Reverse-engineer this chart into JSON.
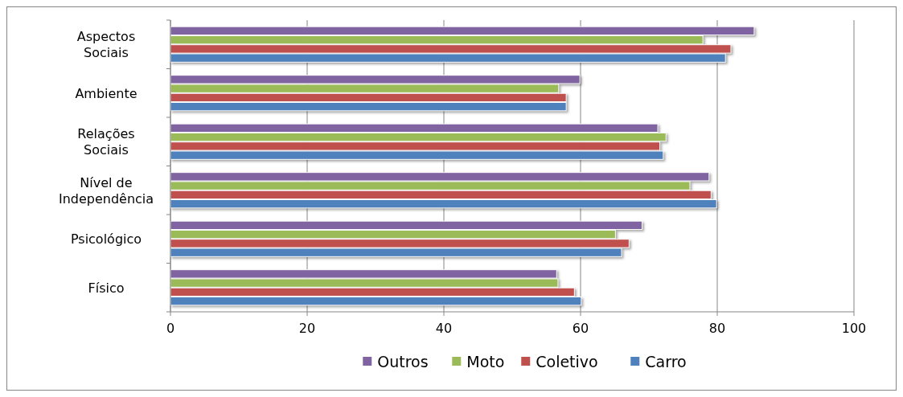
{
  "chart_data": {
    "type": "bar",
    "orientation": "horizontal",
    "categories": [
      "Aspectos Sociais",
      "Ambiente",
      "Relações Sociais",
      "Nível de Independência",
      "Psicológico",
      "Físico"
    ],
    "series": [
      {
        "name": "Outros",
        "color": "#8064a2",
        "values": [
          85.4,
          59.9,
          71.3,
          78.8,
          69.0,
          56.5
        ]
      },
      {
        "name": "Moto",
        "color": "#9bbb59",
        "values": [
          77.9,
          56.8,
          72.5,
          76.0,
          65.1,
          56.7
        ]
      },
      {
        "name": "Coletivo",
        "color": "#c0504d",
        "values": [
          82.0,
          57.9,
          71.6,
          79.1,
          67.1,
          59.1
        ]
      },
      {
        "name": "Carro",
        "color": "#4f81bd",
        "values": [
          81.2,
          57.9,
          72.1,
          79.9,
          66.0,
          60.1
        ]
      }
    ],
    "xlim": [
      0,
      100
    ],
    "xticks": [
      0,
      20,
      40,
      60,
      80,
      100
    ],
    "grid": "x",
    "legend": "bottom"
  }
}
